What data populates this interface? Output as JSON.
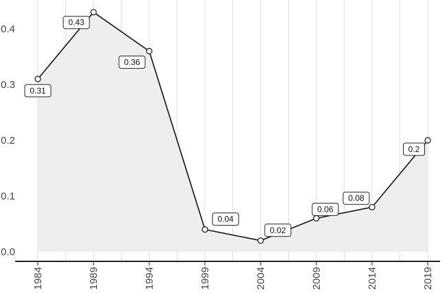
{
  "chart_data": {
    "type": "area",
    "x": [
      1984,
      1989,
      1994,
      1999,
      2004,
      2009,
      2014,
      2019
    ],
    "x_tick_labels": [
      "1984",
      "1989",
      "1994",
      "1999",
      "2004",
      "2009",
      "2014",
      "2019"
    ],
    "values": [
      0.31,
      0.43,
      0.36,
      0.04,
      0.02,
      0.06,
      0.08,
      0.2
    ],
    "data_labels": [
      "0.31",
      "0.43",
      "0.36",
      "0.04",
      "0.02",
      "0.06",
      "0.08",
      "0.2"
    ],
    "y_ticks": [
      0.0,
      0.1,
      0.2,
      0.3,
      0.4
    ],
    "y_tick_labels": [
      "0.0",
      "0.1",
      "0.2",
      "0.3",
      "0.4"
    ],
    "ylim": [
      0,
      0.45
    ],
    "title": "",
    "xlabel": "",
    "ylabel": "",
    "grid": "vertical",
    "legend": "none",
    "colors": {
      "line": "#111111",
      "fill": "#efeeef",
      "grid": "#dddddd",
      "marker_fill": "#ffffff",
      "axis": "#222222"
    }
  }
}
